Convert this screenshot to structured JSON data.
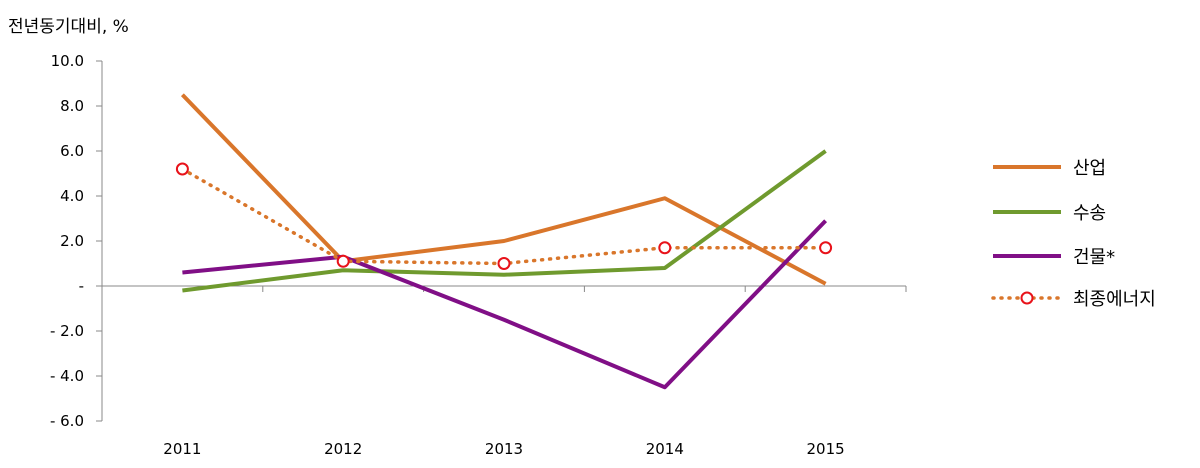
{
  "chart_data": {
    "type": "line",
    "ylabel": "전년동기대비, %",
    "xlabel": "",
    "title": "",
    "categories": [
      "2011",
      "2012",
      "2013",
      "2014",
      "2015"
    ],
    "ylim": [
      -6,
      10
    ],
    "yticks": [
      10,
      8,
      6,
      4,
      2,
      0,
      -2,
      -4,
      -6
    ],
    "ytick_labels": [
      "10.0",
      "8.0",
      "6.0",
      "4.0",
      "2.0",
      "-",
      "- 2.0",
      "- 4.0",
      "- 6.0"
    ],
    "grid": false,
    "legend_position": "right",
    "series": [
      {
        "name": "산업",
        "values": [
          8.5,
          1.1,
          2.0,
          3.9,
          0.1
        ],
        "color": "#d9762b",
        "style": "solid",
        "marker": "none"
      },
      {
        "name": "수송",
        "values": [
          -0.2,
          0.7,
          0.5,
          0.8,
          6.0
        ],
        "color": "#6f9a2e",
        "style": "solid",
        "marker": "none"
      },
      {
        "name": "건물*",
        "values": [
          0.6,
          1.3,
          -1.5,
          -4.5,
          2.9
        ],
        "color": "#800f86",
        "style": "solid",
        "marker": "none"
      },
      {
        "name": "최종에너지",
        "values": [
          5.2,
          1.1,
          1.0,
          1.7,
          1.7
        ],
        "color": "#d9762b",
        "style": "dotted",
        "marker": "circle",
        "marker_color": "#e8121a"
      }
    ]
  }
}
